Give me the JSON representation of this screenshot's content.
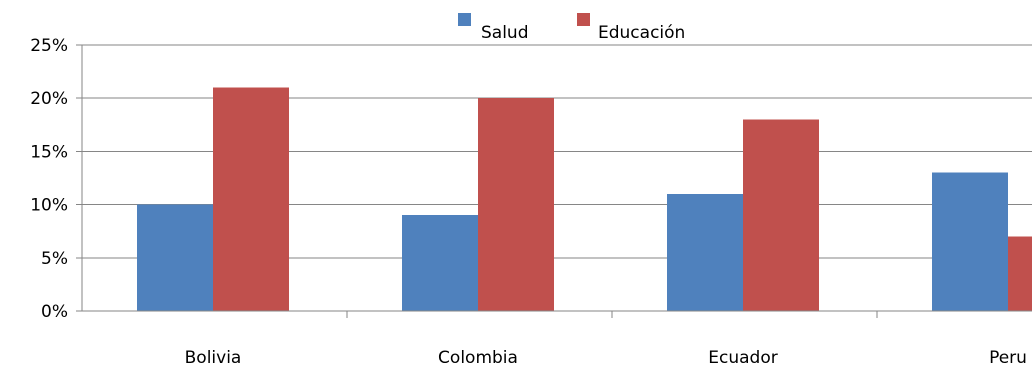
{
  "chart_data": {
    "type": "bar",
    "title": "",
    "xlabel": "",
    "ylabel": "",
    "categories": [
      "Bolivia",
      "Colombia",
      "Ecuador",
      "Peru"
    ],
    "series": [
      {
        "name": "Salud",
        "values": [
          10,
          9,
          11,
          13
        ],
        "color": "#4f81bd"
      },
      {
        "name": "Educación",
        "values": [
          21,
          20,
          18,
          7
        ],
        "color": "#c0504d"
      }
    ],
    "ylim": [
      0,
      25
    ],
    "yticks": [
      0,
      5,
      10,
      15,
      20,
      25
    ],
    "ytick_labels": [
      "0%",
      "5%",
      "10%",
      "15%",
      "20%",
      "25%"
    ],
    "grid": true,
    "legend_position": "top-center"
  }
}
